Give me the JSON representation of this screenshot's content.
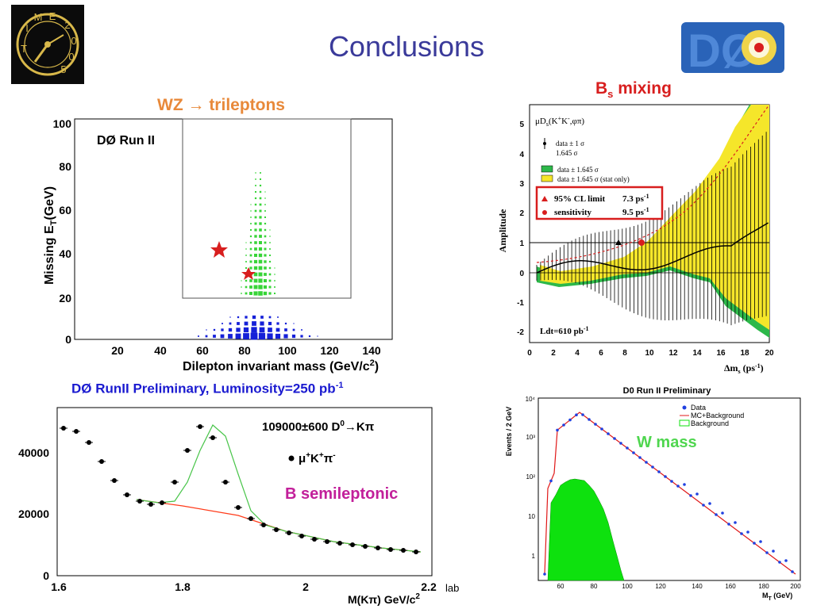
{
  "slide": {
    "title": "Conclusions",
    "footer_text": "lab"
  },
  "logos": {
    "time2005_letters": [
      "T",
      "I",
      "M",
      "E",
      "2",
      "0",
      "0",
      "5"
    ],
    "d0_letters": "DØ"
  },
  "wz_plot": {
    "label": "WZ → trileptons",
    "inset_text": "DØ Run II",
    "ylabel": "Missing E",
    "ylabel_sub": "T",
    "ylabel_unit": "(GeV)",
    "xlabel": "Dilepton invariant mass (GeV/c",
    "xlabel_sup": "2",
    "xlabel_end": ")",
    "x_ticks": [
      "20",
      "40",
      "60",
      "80",
      "100",
      "120",
      "140"
    ],
    "y_ticks": [
      "0",
      "20",
      "40",
      "60",
      "80",
      "100"
    ],
    "caption": "DØ RunII  Preliminary, Luminosity=250 pb",
    "caption_sup": "-1"
  },
  "bs_plot": {
    "label_main": "B",
    "label_sub": "s",
    "label_end": " mixing",
    "ylabel": "Amplitude",
    "header": "μD",
    "header_sub": "s",
    "header_end": "(K",
    "header_sup1": "+",
    "header_mid": "K",
    "header_sup2": "-",
    "header_tail": ",φπ)",
    "legend_data_1": "data ± 1 σ",
    "legend_1645": "1.645 σ",
    "legend_green": "data ± 1.645 σ",
    "legend_yellow": "data ± 1.645 σ (stat only)",
    "box_cl_label": "95% CL limit",
    "box_cl_value": "7.3 ps",
    "box_sens_label": "sensitivity",
    "box_sens_value": "9.5 ps",
    "box_sup": "-1",
    "lumi": "Ldt=610 pb",
    "lumi_sup": "-1",
    "xlabel": "Δm",
    "xlabel_sub": "s",
    "xlabel_unit": " (ps",
    "xlabel_sup": "-1",
    "xlabel_end": ")",
    "x_ticks": [
      "0",
      "2",
      "4",
      "6",
      "8",
      "10",
      "12",
      "14",
      "16",
      "18",
      "20"
    ],
    "y_ticks": [
      "5",
      "4",
      "3",
      "2",
      "1",
      "0",
      "-1",
      "-2"
    ]
  },
  "kpi_plot": {
    "fit_text": "109000±600  D",
    "fit_sup": "0",
    "fit_end": "→Kπ",
    "legend_text": "μ",
    "legend_sup1": "+",
    "legend_mid": "K",
    "legend_sup2": "+",
    "legend_tail": "π",
    "legend_sup3": "-",
    "label": "B semileptonic",
    "x_ticks": [
      "1.6",
      "1.8",
      "2",
      "2.2"
    ],
    "y_ticks": [
      "40000",
      "20000",
      "0"
    ],
    "xlabel": "M(Kπ) GeV/c",
    "xlabel_sup": "2"
  },
  "w_plot": {
    "title": "D0 Run II Preliminary",
    "ylabel": "Events / 2 GeV",
    "legend": [
      "Data",
      "MC+Background",
      "Background"
    ],
    "label": "W mass",
    "x_ticks": [
      "60",
      "80",
      "100",
      "120",
      "140",
      "160",
      "180",
      "200"
    ],
    "y_ticks": [
      "10⁴",
      "10³",
      "10²",
      "10",
      "1"
    ],
    "xlabel": "M",
    "xlabel_sub": "T",
    "xlabel_unit": " (GeV)"
  },
  "colors": {
    "title": "#3a3a9a",
    "orange": "#e8893a",
    "red": "#d81e1e",
    "blue": "#1a1ad0",
    "magenta": "#c21f9a",
    "green": "#4fd64f",
    "yellow": "#f5e62a"
  }
}
